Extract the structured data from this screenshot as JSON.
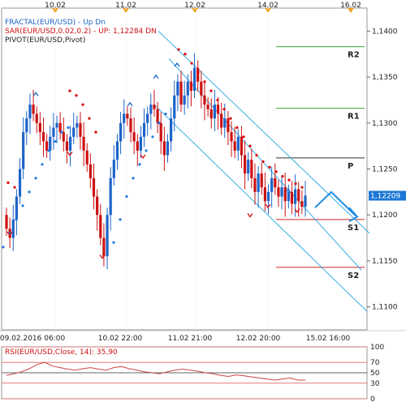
{
  "legend": {
    "fractal": {
      "label": "FRACTAL(EUR/USD) - Up  Dn"
    },
    "sar": {
      "label": "SAR(EUR/USD,0.02,0.2) - UP: 1,12284  DN"
    },
    "pivot": {
      "label": "PIVOT(EUR/USD,Pivot)"
    }
  },
  "colors": {
    "up_candle": "#1e64c8",
    "down_candle": "#cc1111",
    "sar_up": "#1e7ae0",
    "sar_down": "#dd0000",
    "channel": "#3aaee6",
    "r_lines": "#33aa33",
    "p_line": "#333333",
    "s_lines": "#cc2222",
    "last_price_bg": "#1e78d6",
    "rsi_line": "#cc4444",
    "rsi_level_red": "#e06666",
    "frame": "#999999",
    "event_marker": "#f0a020"
  },
  "chart_data": [
    {
      "type": "candlestick",
      "symbol": "EUR/USD",
      "ylim": [
        1.1075,
        1.1425
      ],
      "price_ticks": [
        "1,1400",
        "1,1350",
        "1,1300",
        "1,1250",
        "1,1200",
        "1,1150",
        "1,1100"
      ],
      "last_price": "1,12209",
      "time_labels_top": [
        "10.02",
        "11.02",
        "12.02",
        "14.02",
        "16.02"
      ],
      "time_labels_bottom": [
        "09.02.2016 06:00",
        "10.02 22:00",
        "11.02 21:00",
        "12.02 20:00",
        "15.02 16:00"
      ],
      "pivots": [
        {
          "name": "R2",
          "value": 1.1383
        },
        {
          "name": "R1",
          "value": 1.1316
        },
        {
          "name": "P",
          "value": 1.1262
        },
        {
          "name": "S1",
          "value": 1.1195
        },
        {
          "name": "S2",
          "value": 1.1143
        }
      ],
      "sar_up_values": "1,12284",
      "annotation": "projected drop arrow after breaking channel"
    },
    {
      "type": "line",
      "title": "RSI(EUR/USD,Close, 14): 35,90",
      "ylim": [
        0,
        100
      ],
      "levels": [
        100,
        70,
        50,
        30,
        0
      ],
      "level_labels": [
        "100",
        "70",
        "50",
        "30",
        "0"
      ],
      "current_value": 35.9
    }
  ]
}
